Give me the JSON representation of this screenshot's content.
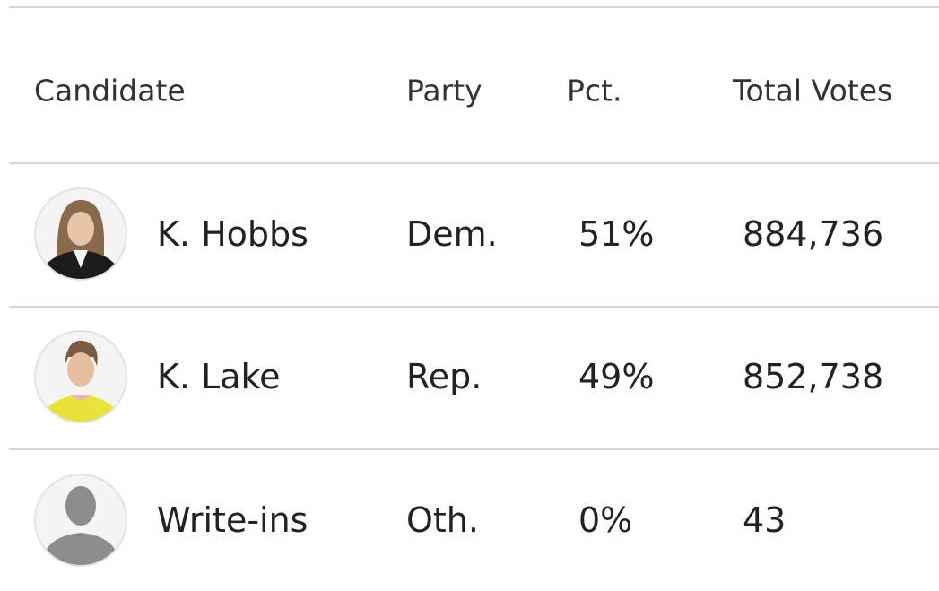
{
  "table": {
    "header": [
      "Candidate",
      "Party",
      "Pct.",
      "Total Votes"
    ],
    "rows": [
      [
        "K. Hobbs",
        "Dem.",
        "51%",
        "884,736"
      ],
      [
        "K. Lake",
        "Rep.",
        "49%",
        "852,738"
      ],
      [
        "Write-ins",
        "Oth.",
        "0%",
        "43"
      ]
    ]
  }
}
